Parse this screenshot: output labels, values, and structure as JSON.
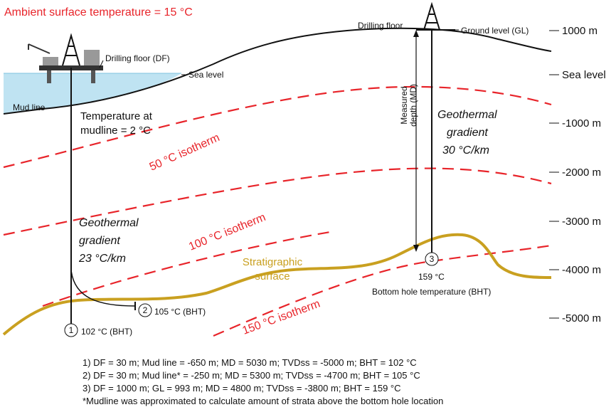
{
  "title": "Ambient surface temperature = 15 °C",
  "labels": {
    "drilling_floor_df": "Drilling floor (DF)",
    "sea_level": "Sea level",
    "mud_line": "Mud line",
    "mudline_temperature": [
      "Temperature at",
      "mudline = 2 °C"
    ],
    "drilling_floor": "Drilling floor",
    "ground_level": "Ground level (GL)",
    "measured_depth": [
      "Measured",
      "depth (MD)"
    ],
    "gradient_right": [
      "Geothermal",
      "gradient",
      "30 °C/km"
    ],
    "gradient_left": [
      "Geothermal",
      "gradient",
      "23 °C/km"
    ],
    "isotherm_50": "50 °C isotherm",
    "isotherm_100": "100 °C isotherm",
    "isotherm_150": "150 °C isotherm",
    "stratigraphic_surface": [
      "Stratigraphic",
      "surface"
    ]
  },
  "wells": [
    {
      "number": "1",
      "label": "102 °C (BHT)"
    },
    {
      "number": "2",
      "label": "105 °C (BHT)"
    },
    {
      "number": "3",
      "label": "159 °C",
      "note": "Bottom hole temperature (BHT)"
    }
  ],
  "depth_scale": [
    "1000 m",
    "Sea level",
    "-1000 m",
    "-2000 m",
    "-3000 m",
    "-4000 m",
    "-5000 m"
  ],
  "notes": [
    "1) DF = 30 m; Mud line = -650 m; MD = 5030 m; TVDss = -5000 m; BHT = 102 °C",
    "2) DF = 30 m; Mud line* = -250 m; MD = 5300 m; TVDss = -4700 m; BHT = 105 °C",
    "3) DF = 1000 m; GL = 993 m; MD = 4800 m; TVDss = -3800 m; BHT = 159 °C",
    "*Mudline was approximated to calculate amount of strata above the bottom hole location"
  ]
}
